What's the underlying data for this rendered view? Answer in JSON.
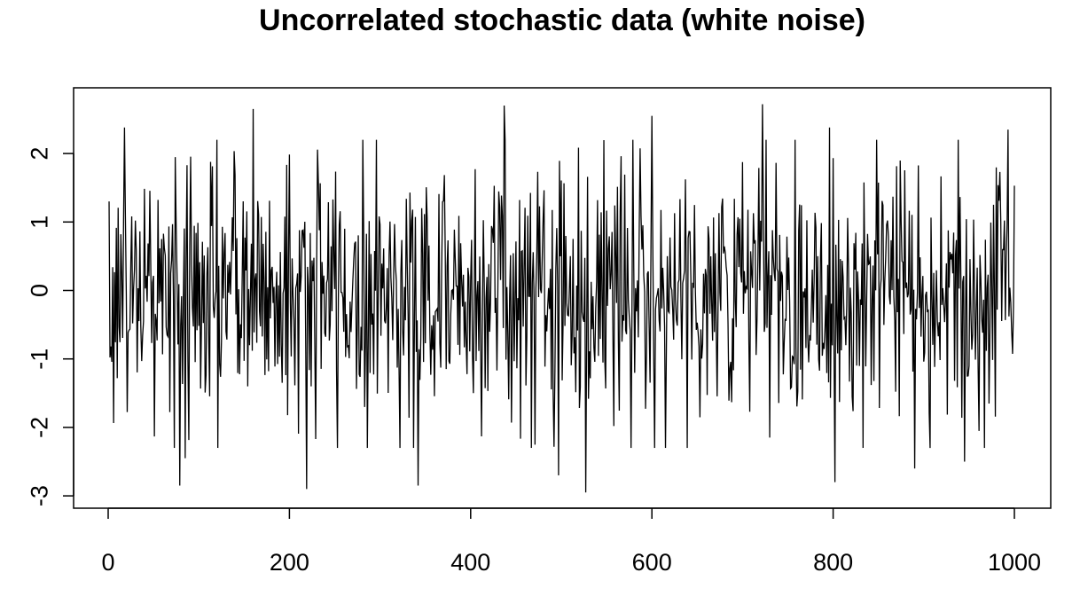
{
  "chart_data": {
    "type": "line",
    "title": "Uncorrelated stochastic data (white noise)",
    "xlabel": "",
    "ylabel": "",
    "xlim": [
      0,
      1000
    ],
    "ylim": [
      -3,
      2.7
    ],
    "x_ticks": [
      0,
      200,
      400,
      600,
      800,
      1000
    ],
    "x_tick_labels": [
      "0",
      "200",
      "400",
      "600",
      "800",
      "1000"
    ],
    "y_ticks": [
      -3,
      -2,
      -1,
      0,
      1,
      2
    ],
    "y_tick_labels": [
      "-3",
      "-2",
      "-1",
      "0",
      "1",
      "2"
    ],
    "grid": false,
    "legend": "none",
    "line_color": "#000000",
    "series": [
      {
        "n_points": 1000,
        "highlights": [
          {
            "x": 1,
            "y": 1.3
          },
          {
            "x": 18,
            "y": 2.38
          },
          {
            "x": 79,
            "y": -2.85
          },
          {
            "x": 85,
            "y": -2.45
          },
          {
            "x": 160,
            "y": 2.65
          },
          {
            "x": 219,
            "y": -2.9
          },
          {
            "x": 342,
            "y": -2.85
          },
          {
            "x": 437,
            "y": 2.7
          },
          {
            "x": 497,
            "y": -2.7
          },
          {
            "x": 527,
            "y": -2.95
          },
          {
            "x": 600,
            "y": 2.55
          },
          {
            "x": 722,
            "y": 2.72
          },
          {
            "x": 796,
            "y": 2.38
          },
          {
            "x": 802,
            "y": -2.8
          },
          {
            "x": 890,
            "y": -2.6
          },
          {
            "x": 945,
            "y": -2.5
          },
          {
            "x": 993,
            "y": 2.35
          },
          {
            "x": 1000,
            "y": 1.53
          }
        ],
        "mean": 0,
        "sd": 1
      }
    ]
  }
}
